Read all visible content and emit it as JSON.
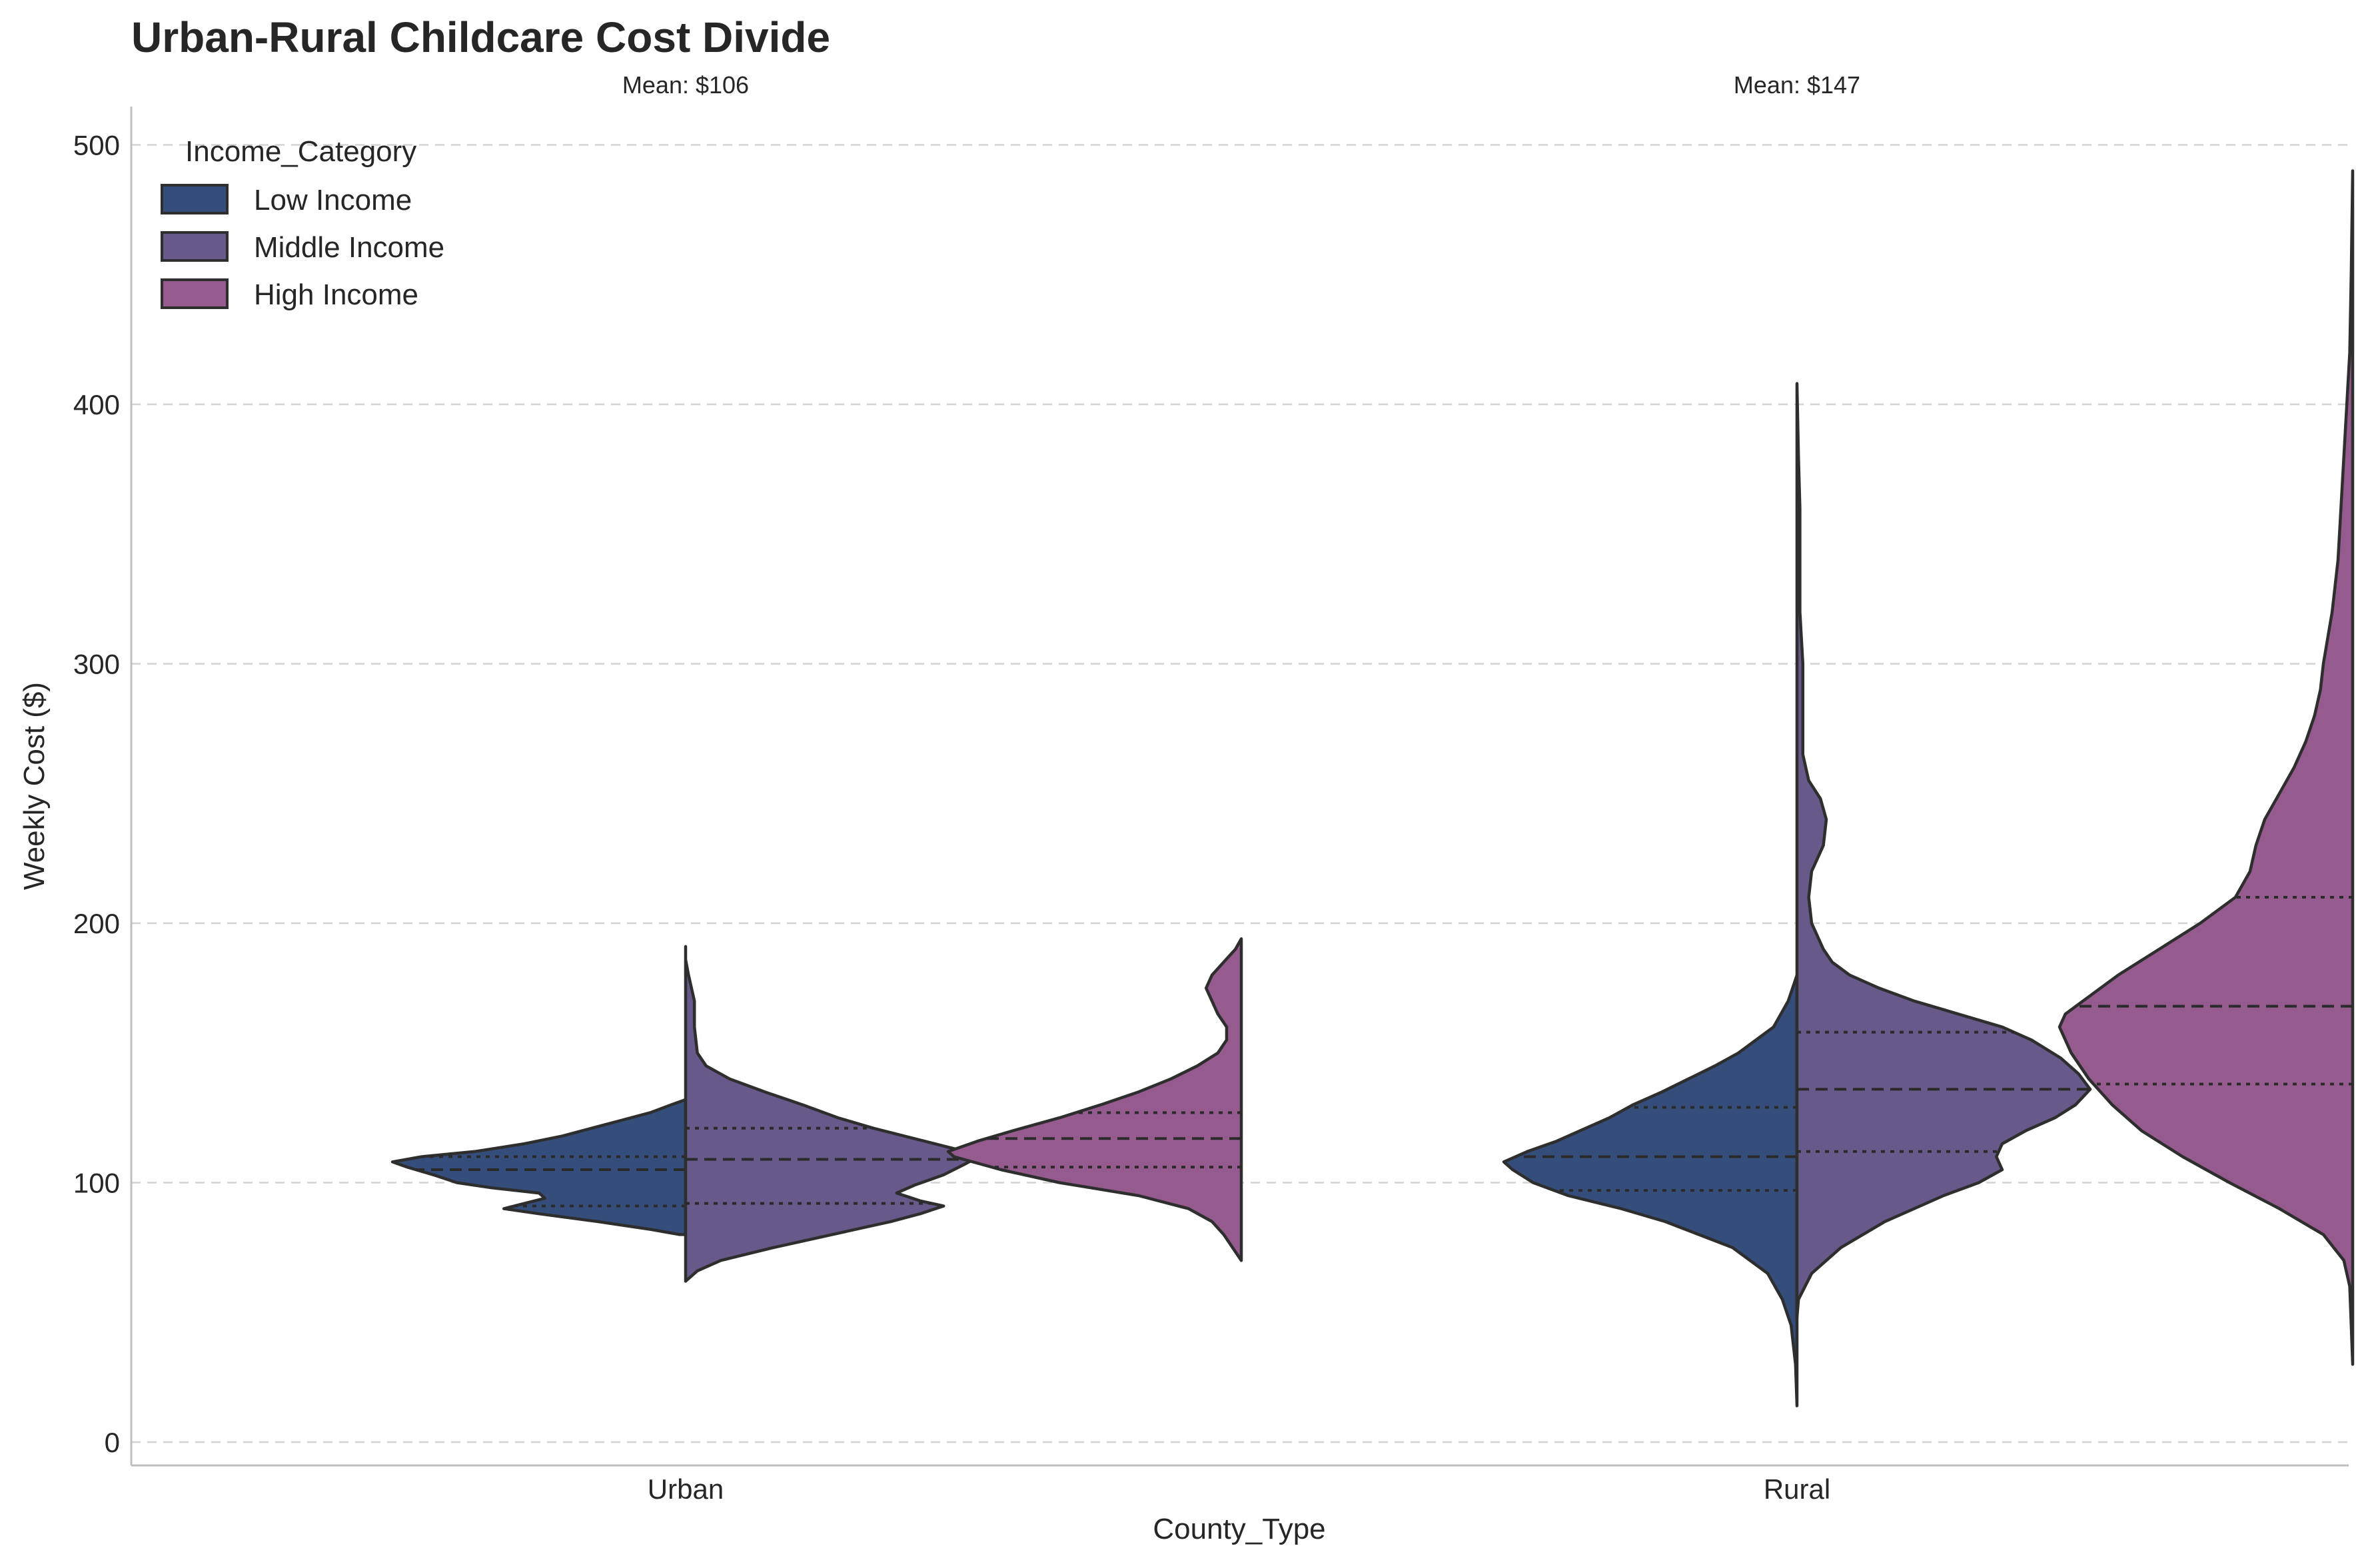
{
  "chart_data": {
    "type": "violin",
    "title": "Urban-Rural Childcare Cost Divide",
    "xlabel": "County_Type",
    "ylabel": "Weekly Cost ($)",
    "ylim": [
      -10,
      515
    ],
    "yticks": [
      0,
      100,
      200,
      300,
      400,
      500
    ],
    "grid": "y-dashed",
    "legend": {
      "title": "Income_Category",
      "position": "top-left"
    },
    "categories": [
      "Urban",
      "Rural"
    ],
    "annotations": [
      {
        "category": "Urban",
        "text": "Mean: $106"
      },
      {
        "category": "Rural",
        "text": "Mean: $147"
      }
    ],
    "series": [
      {
        "name": "Low Income",
        "color": "#354d7a"
      },
      {
        "name": "Middle Income",
        "color": "#675989"
      },
      {
        "name": "High Income",
        "color": "#955b8e"
      }
    ],
    "violins": [
      {
        "category": "Urban",
        "series": "Low Income",
        "side": "left",
        "position": 0,
        "min": 80,
        "max": 132,
        "q1": 91,
        "median": 105,
        "q3": 110,
        "profile": [
          [
            80,
            0.02
          ],
          [
            82,
            0.12
          ],
          [
            85,
            0.3
          ],
          [
            88,
            0.5
          ],
          [
            90,
            0.62
          ],
          [
            92,
            0.55
          ],
          [
            94,
            0.48
          ],
          [
            96,
            0.5
          ],
          [
            98,
            0.66
          ],
          [
            100,
            0.78
          ],
          [
            103,
            0.86
          ],
          [
            106,
            0.95
          ],
          [
            108,
            1.0
          ],
          [
            110,
            0.9
          ],
          [
            112,
            0.72
          ],
          [
            115,
            0.55
          ],
          [
            118,
            0.42
          ],
          [
            121,
            0.32
          ],
          [
            124,
            0.22
          ],
          [
            127,
            0.12
          ],
          [
            130,
            0.05
          ],
          [
            132,
            0.0
          ]
        ]
      },
      {
        "category": "Urban",
        "series": "Middle Income",
        "side": "right",
        "position": 0,
        "min": 62,
        "max": 191,
        "q1": 92,
        "median": 109,
        "q3": 121,
        "profile": [
          [
            62,
            0.0
          ],
          [
            66,
            0.04
          ],
          [
            70,
            0.12
          ],
          [
            75,
            0.3
          ],
          [
            80,
            0.5
          ],
          [
            85,
            0.7
          ],
          [
            88,
            0.8
          ],
          [
            91,
            0.88
          ],
          [
            93,
            0.8
          ],
          [
            96,
            0.72
          ],
          [
            99,
            0.78
          ],
          [
            103,
            0.88
          ],
          [
            107,
            0.95
          ],
          [
            110,
            1.0
          ],
          [
            113,
            0.92
          ],
          [
            117,
            0.78
          ],
          [
            121,
            0.64
          ],
          [
            125,
            0.52
          ],
          [
            130,
            0.4
          ],
          [
            135,
            0.27
          ],
          [
            140,
            0.15
          ],
          [
            145,
            0.07
          ],
          [
            150,
            0.04
          ],
          [
            160,
            0.03
          ],
          [
            170,
            0.03
          ],
          [
            180,
            0.01
          ],
          [
            186,
            0.0
          ],
          [
            191,
            0.0
          ]
        ]
      },
      {
        "category": "Urban",
        "series": "High Income",
        "side": "left",
        "position": 0.5,
        "min": 70,
        "max": 194,
        "q1": 106,
        "median": 117,
        "q3": 127,
        "profile": [
          [
            70,
            0.0
          ],
          [
            75,
            0.03
          ],
          [
            80,
            0.06
          ],
          [
            85,
            0.1
          ],
          [
            90,
            0.18
          ],
          [
            95,
            0.35
          ],
          [
            100,
            0.62
          ],
          [
            105,
            0.82
          ],
          [
            110,
            0.98
          ],
          [
            112,
            1.0
          ],
          [
            116,
            0.9
          ],
          [
            120,
            0.78
          ],
          [
            125,
            0.62
          ],
          [
            130,
            0.48
          ],
          [
            135,
            0.35
          ],
          [
            140,
            0.24
          ],
          [
            145,
            0.15
          ],
          [
            150,
            0.08
          ],
          [
            155,
            0.05
          ],
          [
            160,
            0.05
          ],
          [
            165,
            0.08
          ],
          [
            170,
            0.1
          ],
          [
            175,
            0.12
          ],
          [
            180,
            0.1
          ],
          [
            185,
            0.06
          ],
          [
            190,
            0.02
          ],
          [
            194,
            0.0
          ]
        ]
      },
      {
        "category": "Rural",
        "series": "Low Income",
        "side": "left",
        "position": 1,
        "min": 14,
        "max": 180,
        "q1": 97,
        "median": 110,
        "q3": 129,
        "profile": [
          [
            14,
            0.0
          ],
          [
            30,
            0.005
          ],
          [
            45,
            0.02
          ],
          [
            55,
            0.05
          ],
          [
            65,
            0.1
          ],
          [
            75,
            0.22
          ],
          [
            85,
            0.45
          ],
          [
            90,
            0.6
          ],
          [
            95,
            0.78
          ],
          [
            100,
            0.9
          ],
          [
            105,
            0.97
          ],
          [
            108,
            1.0
          ],
          [
            112,
            0.92
          ],
          [
            116,
            0.82
          ],
          [
            120,
            0.74
          ],
          [
            125,
            0.64
          ],
          [
            130,
            0.56
          ],
          [
            135,
            0.46
          ],
          [
            140,
            0.37
          ],
          [
            145,
            0.28
          ],
          [
            150,
            0.2
          ],
          [
            155,
            0.14
          ],
          [
            160,
            0.08
          ],
          [
            170,
            0.03
          ],
          [
            180,
            0.0
          ]
        ]
      },
      {
        "category": "Rural",
        "series": "Middle Income",
        "side": "right",
        "position": 1,
        "min": 48,
        "max": 408,
        "q1": 112,
        "median": 136,
        "q3": 158,
        "profile": [
          [
            48,
            0.0
          ],
          [
            55,
            0.005
          ],
          [
            65,
            0.05
          ],
          [
            75,
            0.15
          ],
          [
            85,
            0.3
          ],
          [
            95,
            0.5
          ],
          [
            100,
            0.62
          ],
          [
            105,
            0.7
          ],
          [
            110,
            0.68
          ],
          [
            115,
            0.7
          ],
          [
            120,
            0.78
          ],
          [
            125,
            0.88
          ],
          [
            130,
            0.95
          ],
          [
            136,
            1.0
          ],
          [
            142,
            0.96
          ],
          [
            148,
            0.9
          ],
          [
            155,
            0.8
          ],
          [
            160,
            0.7
          ],
          [
            165,
            0.55
          ],
          [
            170,
            0.4
          ],
          [
            175,
            0.28
          ],
          [
            180,
            0.18
          ],
          [
            185,
            0.12
          ],
          [
            190,
            0.09
          ],
          [
            195,
            0.07
          ],
          [
            200,
            0.05
          ],
          [
            210,
            0.04
          ],
          [
            220,
            0.05
          ],
          [
            230,
            0.09
          ],
          [
            240,
            0.1
          ],
          [
            248,
            0.08
          ],
          [
            255,
            0.04
          ],
          [
            265,
            0.02
          ],
          [
            280,
            0.02
          ],
          [
            300,
            0.02
          ],
          [
            320,
            0.01
          ],
          [
            340,
            0.01
          ],
          [
            360,
            0.01
          ],
          [
            380,
            0.005
          ],
          [
            408,
            0.0
          ]
        ]
      },
      {
        "category": "Rural",
        "series": "High Income",
        "side": "left",
        "position": 1.5,
        "min": 30,
        "max": 490,
        "q1": 138,
        "median": 168,
        "q3": 210,
        "profile": [
          [
            30,
            0.0
          ],
          [
            45,
            0.005
          ],
          [
            60,
            0.01
          ],
          [
            70,
            0.03
          ],
          [
            80,
            0.1
          ],
          [
            90,
            0.25
          ],
          [
            100,
            0.42
          ],
          [
            110,
            0.58
          ],
          [
            120,
            0.72
          ],
          [
            130,
            0.82
          ],
          [
            140,
            0.9
          ],
          [
            150,
            0.96
          ],
          [
            160,
            1.0
          ],
          [
            165,
            0.98
          ],
          [
            170,
            0.92
          ],
          [
            180,
            0.8
          ],
          [
            190,
            0.66
          ],
          [
            200,
            0.52
          ],
          [
            210,
            0.4
          ],
          [
            220,
            0.35
          ],
          [
            230,
            0.33
          ],
          [
            240,
            0.3
          ],
          [
            250,
            0.25
          ],
          [
            260,
            0.2
          ],
          [
            270,
            0.16
          ],
          [
            280,
            0.13
          ],
          [
            290,
            0.11
          ],
          [
            300,
            0.1
          ],
          [
            320,
            0.07
          ],
          [
            340,
            0.05
          ],
          [
            360,
            0.04
          ],
          [
            380,
            0.03
          ],
          [
            400,
            0.02
          ],
          [
            420,
            0.01
          ],
          [
            450,
            0.005
          ],
          [
            490,
            0.0
          ]
        ]
      }
    ]
  }
}
